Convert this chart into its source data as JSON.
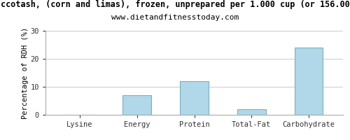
{
  "title1": "ccotash, (corn and limas), frozen, unprepared per 1.000 cup (or 156.00",
  "title2": "www.dietandfitnesstoday.com",
  "categories": [
    "Lysine",
    "Energy",
    "Protein",
    "Total-Fat",
    "Carbohydrate"
  ],
  "values": [
    0,
    7,
    12,
    2,
    24
  ],
  "bar_color": "#b0d8e8",
  "bar_edge_color": "#7aafc0",
  "ylabel": "Percentage of RDH (%)",
  "ylim": [
    0,
    30
  ],
  "yticks": [
    0,
    10,
    20,
    30
  ],
  "background_color": "#ffffff",
  "plot_bg_color": "#ffffff",
  "grid_color": "#cccccc",
  "title1_fontsize": 8.5,
  "title2_fontsize": 8,
  "axis_fontsize": 7.5,
  "ylabel_fontsize": 7.5
}
